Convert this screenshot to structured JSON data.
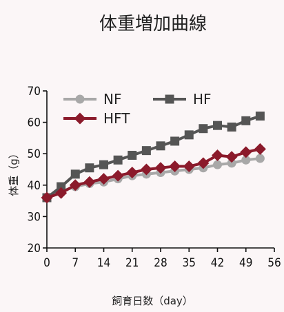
{
  "chart_data": {
    "type": "line",
    "title": "体重増加曲線",
    "xlabel": "飼育日数（day）",
    "ylabel": "体重（g）",
    "xlim": [
      0,
      56
    ],
    "ylim": [
      20,
      70
    ],
    "x_ticks": [
      0,
      7,
      14,
      21,
      28,
      35,
      42,
      49,
      56
    ],
    "y_ticks": [
      20,
      30,
      40,
      50,
      60,
      70
    ],
    "grid": false,
    "legend": "top-left",
    "series": [
      {
        "name": "NF",
        "color": "#a8a8a8",
        "marker": "circle",
        "x": [
          0,
          3.5,
          7,
          10.5,
          14,
          17.5,
          21,
          24.5,
          28,
          31.5,
          35,
          38.5,
          42,
          45.5,
          49,
          52.5
        ],
        "y": [
          36,
          38,
          39.5,
          40.5,
          41,
          42,
          43,
          43.5,
          44,
          44.5,
          45,
          45.5,
          46.5,
          47,
          48,
          48.5
        ]
      },
      {
        "name": "HF",
        "color": "#555555",
        "marker": "square",
        "x": [
          0,
          3.5,
          7,
          10.5,
          14,
          17.5,
          21,
          24.5,
          28,
          31.5,
          35,
          38.5,
          42,
          45.5,
          49,
          52.5
        ],
        "y": [
          36,
          39.5,
          43.5,
          45.5,
          46.5,
          48,
          49.5,
          51,
          52.5,
          54,
          56,
          58,
          59,
          58.5,
          60.5,
          62
        ]
      },
      {
        "name": "HFT",
        "color": "#8b1a2b",
        "marker": "diamond",
        "x": [
          0,
          3.5,
          7,
          10.5,
          14,
          17.5,
          21,
          24.5,
          28,
          31.5,
          35,
          38.5,
          42,
          45.5,
          49,
          52.5
        ],
        "y": [
          36,
          37.5,
          40,
          41,
          42,
          43,
          44,
          45,
          45.5,
          46,
          46,
          47,
          49.5,
          49,
          50.5,
          51.5
        ]
      }
    ]
  }
}
